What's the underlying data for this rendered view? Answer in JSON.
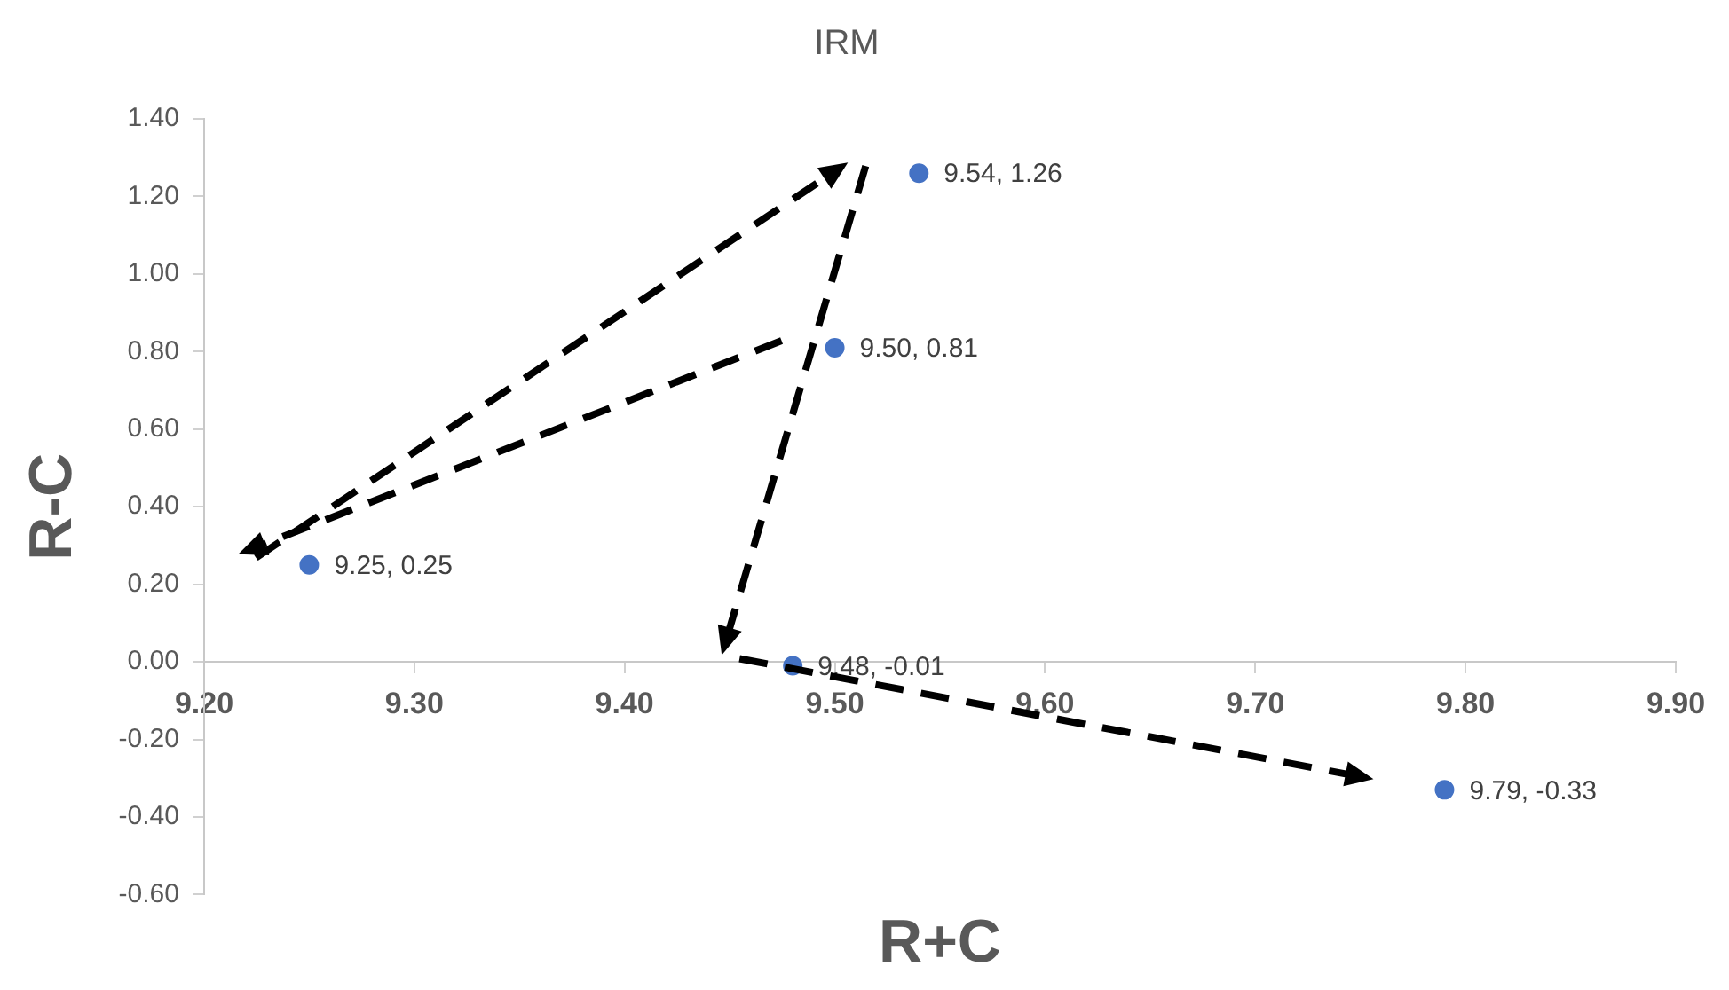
{
  "chart_data": {
    "type": "scatter",
    "title": "IRM",
    "xlabel": "R+C",
    "ylabel": "R-C",
    "x": [
      9.5,
      9.25,
      9.54,
      9.48,
      9.79
    ],
    "series": [
      {
        "color": "#4472c4",
        "values": [
          0.81,
          0.25,
          1.26,
          -0.01,
          -0.33
        ],
        "value_labels": [
          "9.50, 0.81",
          "9.25, 0.25",
          "9.54, 1.26",
          "9.48, -0.01",
          "9.79, -0.33"
        ]
      }
    ],
    "xlim": [
      9.2,
      9.9
    ],
    "xticks": [
      {
        "value": 9.2,
        "label": "9.20"
      },
      {
        "value": 9.3,
        "label": "9.30"
      },
      {
        "value": 9.4,
        "label": "9.40"
      },
      {
        "value": 9.5,
        "label": "9.50"
      },
      {
        "value": 9.6,
        "label": "9.60"
      },
      {
        "value": 9.7,
        "label": "9.70"
      },
      {
        "value": 9.8,
        "label": "9.80"
      },
      {
        "value": 9.9,
        "label": "9.90"
      }
    ],
    "ylim": [
      -0.6,
      1.4
    ],
    "yticks": [
      {
        "value": -0.6,
        "label": "-0.60"
      },
      {
        "value": -0.4,
        "label": "-0.40"
      },
      {
        "value": -0.2,
        "label": "-0.20"
      },
      {
        "value": 0,
        "label": "0.00"
      },
      {
        "value": 0.2,
        "label": "0.20"
      },
      {
        "value": 0.4,
        "label": "0.40"
      },
      {
        "value": 0.6,
        "label": "0.60"
      },
      {
        "value": 0.8,
        "label": "0.80"
      },
      {
        "value": 1.0,
        "label": "1.00"
      },
      {
        "value": 1.2,
        "label": "1.20"
      },
      {
        "value": 1.4,
        "label": "1.40"
      }
    ],
    "grid": false,
    "legend": false,
    "marker": "circle"
  }
}
